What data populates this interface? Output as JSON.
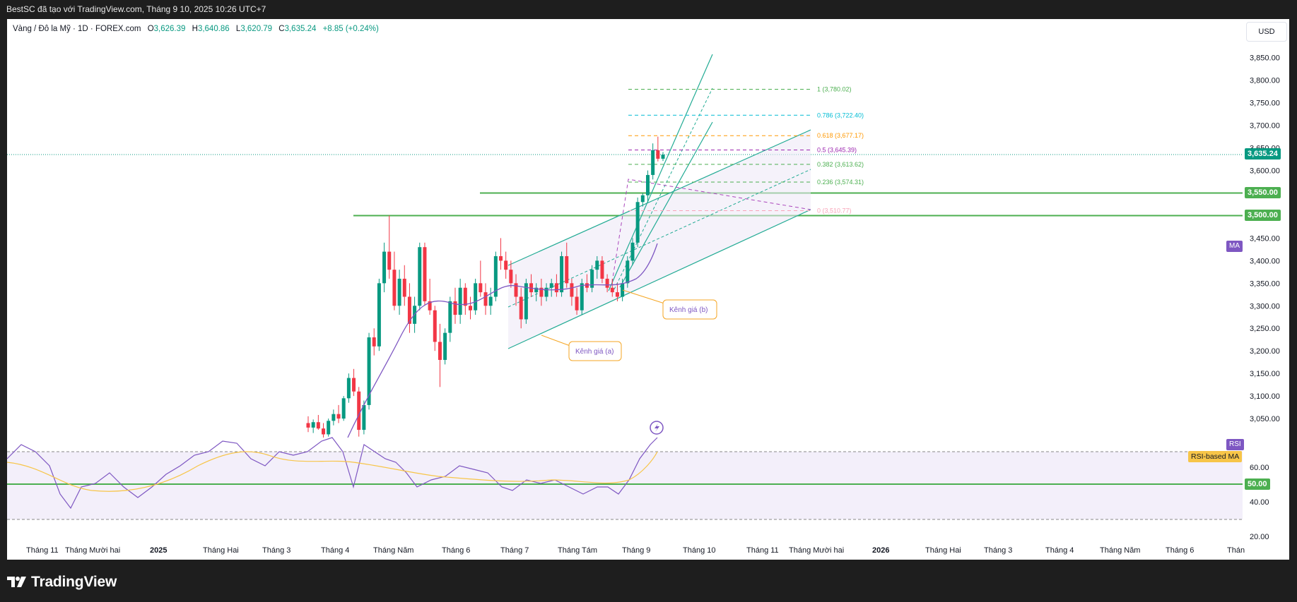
{
  "topbar": {
    "caption": "BestSC đã tạo với TradingView.com, Tháng 9 10, 2025 10:26 UTC+7"
  },
  "legend": {
    "symbol": "Vàng / Đô la Mỹ · 1D · FOREX.com",
    "o_label": "O",
    "o": "3,626.39",
    "h_label": "H",
    "h": "3,640.86",
    "l_label": "L",
    "l": "3,620.79",
    "c_label": "C",
    "c": "3,635.24",
    "change": "+8.85 (+0.24%)"
  },
  "currency_button": "USD",
  "price_axis": [
    "3,850.00",
    "3,800.00",
    "3,750.00",
    "3,700.00",
    "3,650.00",
    "3,600.00",
    "3,550.00",
    "3,500.00",
    "3,450.00",
    "3,400.00",
    "3,350.00",
    "3,300.00",
    "3,250.00",
    "3,200.00",
    "3,150.00",
    "3,100.00",
    "3,050.00"
  ],
  "rsi_axis": [
    "60.00",
    "40.00",
    "20.00"
  ],
  "tags": {
    "last_price": "3,635.24",
    "level_3550": "3,550.00",
    "level_3500": "3,500.00",
    "ma": "MA",
    "rsi": "RSI",
    "rsi_ma": "RSI-based MA",
    "rsi_50": "50.00"
  },
  "fib": {
    "f1": "1 (3,780.02)",
    "f786": "0.786 (3,722.40)",
    "f618": "0.618 (3,677.17)",
    "f5": "0.5 (3,645.39)",
    "f382": "0.382 (3,613.62)",
    "f236": "0.236 (3,574.31)",
    "f0": "0 (3,510.77)"
  },
  "callouts": {
    "a": "Kênh giá (a)",
    "b": "Kênh giá (b)"
  },
  "time_axis": [
    "Tháng 11",
    "Tháng Mười hai",
    "2025",
    "Tháng Hai",
    "Tháng 3",
    "Tháng 4",
    "Tháng Năm",
    "Tháng 6",
    "Tháng 7",
    "Tháng Tám",
    "Tháng 9",
    "Tháng 10",
    "Tháng 11",
    "Tháng Mười hai",
    "2026",
    "Tháng Hai",
    "Tháng 3",
    "Tháng 4",
    "Tháng Năm",
    "Tháng 6",
    "Thán"
  ],
  "brand": "TradingView",
  "colors": {
    "up": "#089981",
    "down": "#f23645",
    "level_line": "#4caf50",
    "ma": "#7e57c2",
    "rsi": "#7e57c2",
    "rsi_ma": "#f7c548",
    "fib_1": "#4caf50",
    "fib_786": "#00bcd4",
    "fib_618": "#ff9800",
    "fib_5": "#9c27b0",
    "fib_382": "#4caf50",
    "fib_236": "#4caf50",
    "fib_0": "#f8a4b8"
  },
  "candles": [
    {
      "o": 3040,
      "h": 3055,
      "l": 3020,
      "c": 3030
    },
    {
      "o": 3030,
      "h": 3048,
      "l": 3018,
      "c": 3042
    },
    {
      "o": 3042,
      "h": 3058,
      "l": 3025,
      "c": 3028
    },
    {
      "o": 3028,
      "h": 3040,
      "l": 3008,
      "c": 3015
    },
    {
      "o": 3015,
      "h": 3050,
      "l": 3010,
      "c": 3045
    },
    {
      "o": 3045,
      "h": 3070,
      "l": 3035,
      "c": 3060
    },
    {
      "o": 3060,
      "h": 3080,
      "l": 3040,
      "c": 3050
    },
    {
      "o": 3050,
      "h": 3100,
      "l": 3045,
      "c": 3095
    },
    {
      "o": 3095,
      "h": 3150,
      "l": 3085,
      "c": 3140
    },
    {
      "o": 3140,
      "h": 3160,
      "l": 3100,
      "c": 3110
    },
    {
      "o": 3110,
      "h": 3120,
      "l": 3010,
      "c": 3025
    },
    {
      "o": 3025,
      "h": 3090,
      "l": 3015,
      "c": 3080
    },
    {
      "o": 3080,
      "h": 3240,
      "l": 3070,
      "c": 3230
    },
    {
      "o": 3230,
      "h": 3250,
      "l": 3190,
      "c": 3210
    },
    {
      "o": 3210,
      "h": 3360,
      "l": 3200,
      "c": 3350
    },
    {
      "o": 3350,
      "h": 3440,
      "l": 3330,
      "c": 3420
    },
    {
      "o": 3420,
      "h": 3500,
      "l": 3360,
      "c": 3380
    },
    {
      "o": 3380,
      "h": 3420,
      "l": 3290,
      "c": 3300
    },
    {
      "o": 3300,
      "h": 3380,
      "l": 3280,
      "c": 3360
    },
    {
      "o": 3360,
      "h": 3390,
      "l": 3300,
      "c": 3320
    },
    {
      "o": 3320,
      "h": 3350,
      "l": 3240,
      "c": 3260
    },
    {
      "o": 3260,
      "h": 3320,
      "l": 3240,
      "c": 3300
    },
    {
      "o": 3300,
      "h": 3440,
      "l": 3290,
      "c": 3430
    },
    {
      "o": 3430,
      "h": 3440,
      "l": 3300,
      "c": 3310
    },
    {
      "o": 3310,
      "h": 3360,
      "l": 3280,
      "c": 3290
    },
    {
      "o": 3290,
      "h": 3300,
      "l": 3200,
      "c": 3220
    },
    {
      "o": 3220,
      "h": 3260,
      "l": 3120,
      "c": 3180
    },
    {
      "o": 3180,
      "h": 3250,
      "l": 3170,
      "c": 3240
    },
    {
      "o": 3240,
      "h": 3320,
      "l": 3220,
      "c": 3310
    },
    {
      "o": 3310,
      "h": 3340,
      "l": 3260,
      "c": 3280
    },
    {
      "o": 3280,
      "h": 3360,
      "l": 3260,
      "c": 3340
    },
    {
      "o": 3340,
      "h": 3350,
      "l": 3280,
      "c": 3300
    },
    {
      "o": 3300,
      "h": 3320,
      "l": 3270,
      "c": 3290
    },
    {
      "o": 3290,
      "h": 3360,
      "l": 3280,
      "c": 3350
    },
    {
      "o": 3350,
      "h": 3400,
      "l": 3320,
      "c": 3330
    },
    {
      "o": 3330,
      "h": 3350,
      "l": 3280,
      "c": 3300
    },
    {
      "o": 3300,
      "h": 3340,
      "l": 3280,
      "c": 3320
    },
    {
      "o": 3320,
      "h": 3420,
      "l": 3310,
      "c": 3410
    },
    {
      "o": 3410,
      "h": 3450,
      "l": 3380,
      "c": 3400
    },
    {
      "o": 3400,
      "h": 3420,
      "l": 3360,
      "c": 3380
    },
    {
      "o": 3380,
      "h": 3400,
      "l": 3340,
      "c": 3350
    },
    {
      "o": 3350,
      "h": 3370,
      "l": 3300,
      "c": 3320
    },
    {
      "o": 3320,
      "h": 3340,
      "l": 3250,
      "c": 3270
    },
    {
      "o": 3270,
      "h": 3360,
      "l": 3260,
      "c": 3350
    },
    {
      "o": 3350,
      "h": 3370,
      "l": 3320,
      "c": 3330
    },
    {
      "o": 3330,
      "h": 3350,
      "l": 3310,
      "c": 3340
    },
    {
      "o": 3340,
      "h": 3360,
      "l": 3300,
      "c": 3320
    },
    {
      "o": 3320,
      "h": 3350,
      "l": 3310,
      "c": 3340
    },
    {
      "o": 3340,
      "h": 3360,
      "l": 3320,
      "c": 3350
    },
    {
      "o": 3350,
      "h": 3370,
      "l": 3320,
      "c": 3330
    },
    {
      "o": 3330,
      "h": 3420,
      "l": 3320,
      "c": 3410
    },
    {
      "o": 3410,
      "h": 3440,
      "l": 3340,
      "c": 3350
    },
    {
      "o": 3350,
      "h": 3360,
      "l": 3300,
      "c": 3320
    },
    {
      "o": 3320,
      "h": 3340,
      "l": 3280,
      "c": 3290
    },
    {
      "o": 3290,
      "h": 3360,
      "l": 3280,
      "c": 3350
    },
    {
      "o": 3350,
      "h": 3370,
      "l": 3330,
      "c": 3340
    },
    {
      "o": 3340,
      "h": 3390,
      "l": 3330,
      "c": 3380
    },
    {
      "o": 3380,
      "h": 3410,
      "l": 3360,
      "c": 3400
    },
    {
      "o": 3400,
      "h": 3410,
      "l": 3350,
      "c": 3360
    },
    {
      "o": 3360,
      "h": 3370,
      "l": 3330,
      "c": 3340
    },
    {
      "o": 3340,
      "h": 3360,
      "l": 3320,
      "c": 3330
    },
    {
      "o": 3330,
      "h": 3350,
      "l": 3310,
      "c": 3320
    },
    {
      "o": 3320,
      "h": 3360,
      "l": 3310,
      "c": 3350
    },
    {
      "o": 3350,
      "h": 3410,
      "l": 3340,
      "c": 3400
    },
    {
      "o": 3400,
      "h": 3450,
      "l": 3390,
      "c": 3440
    },
    {
      "o": 3440,
      "h": 3540,
      "l": 3430,
      "c": 3530
    },
    {
      "o": 3530,
      "h": 3550,
      "l": 3520,
      "c": 3545
    },
    {
      "o": 3545,
      "h": 3600,
      "l": 3530,
      "c": 3590
    },
    {
      "o": 3590,
      "h": 3660,
      "l": 3580,
      "c": 3645
    },
    {
      "o": 3645,
      "h": 3675,
      "l": 3620,
      "c": 3626
    },
    {
      "o": 3626,
      "h": 3641,
      "l": 3621,
      "c": 3635
    }
  ]
}
